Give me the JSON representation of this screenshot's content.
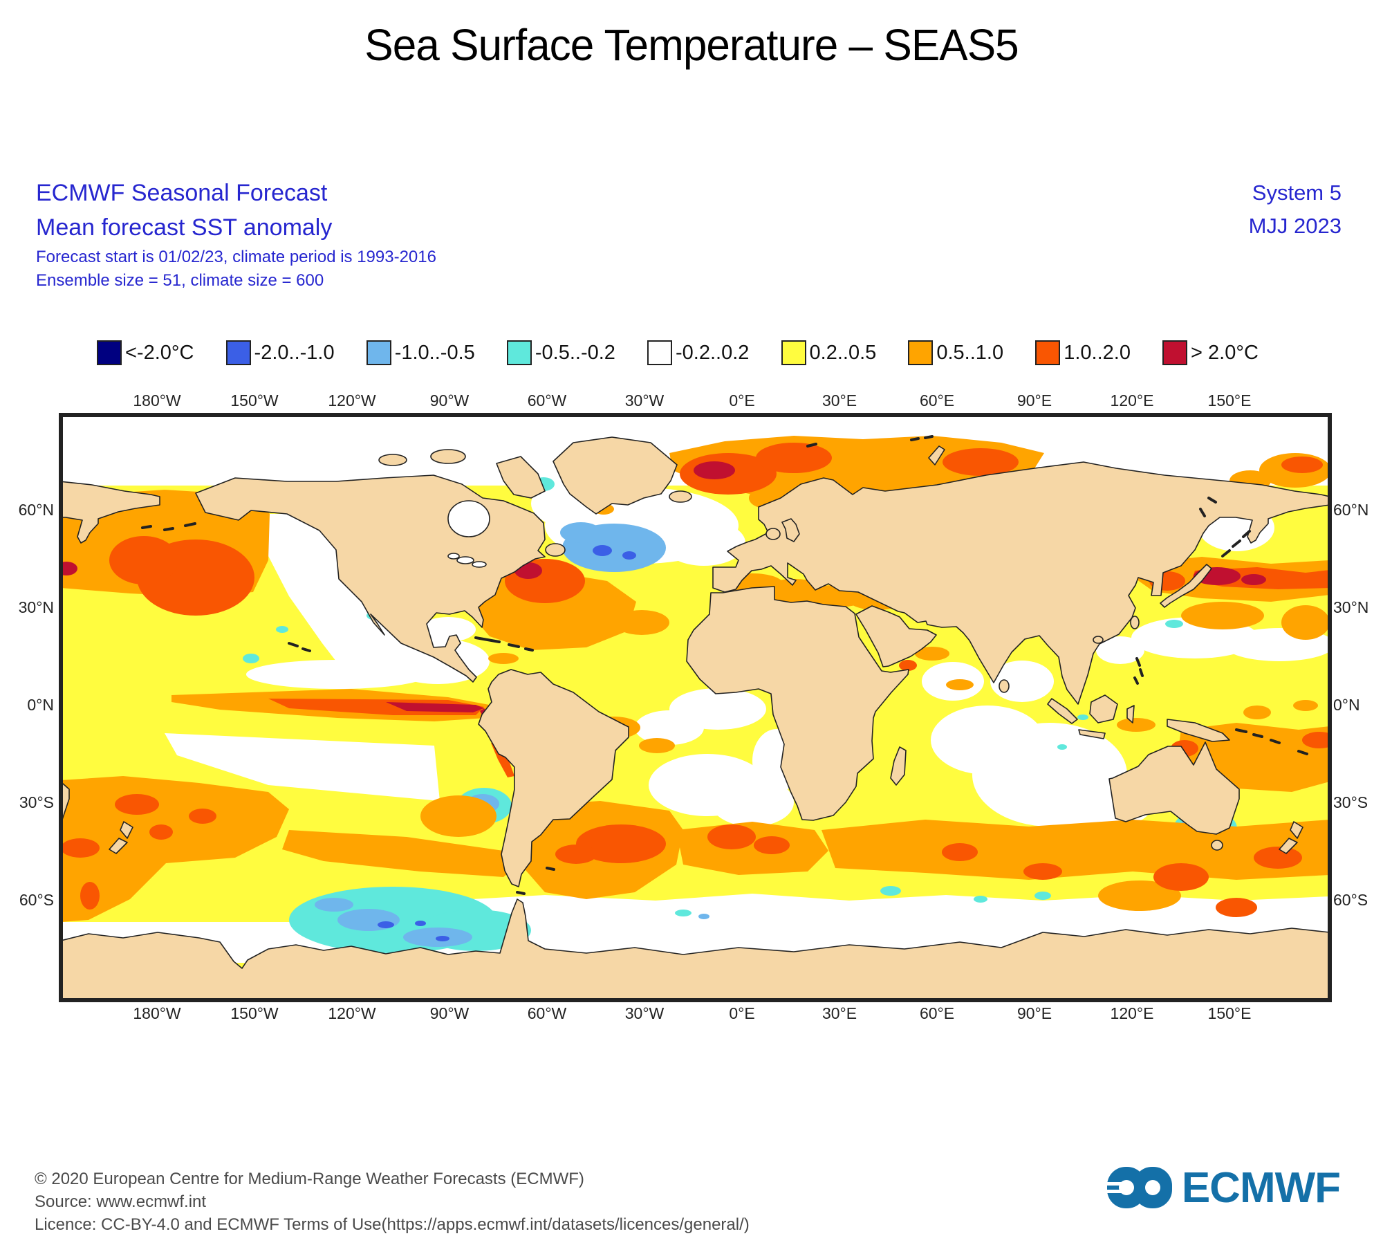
{
  "title": "Sea Surface Temperature – SEAS5",
  "header": {
    "product": "ECMWF Seasonal Forecast",
    "subtitle": "Mean forecast SST anomaly",
    "detail1": "Forecast start is 01/02/23, climate period is 1993-2016",
    "detail2": "Ensemble size = 51, climate size = 600",
    "system": "System 5",
    "period": "MJJ 2023"
  },
  "legend": {
    "items": [
      {
        "color": "#000080",
        "label": "<-2.0°C"
      },
      {
        "color": "#3B5FE6",
        "label": "-2.0..-1.0"
      },
      {
        "color": "#6FB6EC",
        "label": "-1.0..-0.5"
      },
      {
        "color": "#5FE8DC",
        "label": "-0.5..-0.2"
      },
      {
        "color": "#FFFFFF",
        "label": "-0.2..0.2"
      },
      {
        "color": "#FFFC3F",
        "label": "0.2..0.5"
      },
      {
        "color": "#FFA400",
        "label": "0.5..1.0"
      },
      {
        "color": "#F95602",
        "label": "1.0..2.0"
      },
      {
        "color": "#C01030",
        "label": "> 2.0°C"
      }
    ]
  },
  "map": {
    "lon_ticks": [
      "180°W",
      "150°W",
      "120°W",
      "90°W",
      "60°W",
      "30°W",
      "0°E",
      "30°E",
      "60°E",
      "90°E",
      "120°E",
      "150°E"
    ],
    "lat_ticks": [
      "60°N",
      "30°N",
      "0°N",
      "30°S",
      "60°S"
    ],
    "colors": {
      "land": "#F6D7A6",
      "ocean_base": "#FFFC3F"
    }
  },
  "footer": {
    "copyright": "© 2020 European Centre for Medium-Range Weather Forecasts (ECMWF)",
    "source": "Source: www.ecmwf.int",
    "licence": "Licence: CC-BY-4.0 and ECMWF Terms of Use(https://apps.ecmwf.int/datasets/licences/general/)"
  },
  "logo": {
    "text": "ECMWF"
  },
  "chart_data": {
    "type": "map",
    "projection": "equirectangular",
    "variable": "mean forecast SST anomaly (°C), SEAS5 System 5, MJJ 2023",
    "anomaly_bins_c": [
      "<-2.0",
      "-2.0..-1.0",
      "-1.0..-0.5",
      "-0.5..-0.2",
      "-0.2..0.2",
      "0.2..0.5",
      "0.5..1.0",
      "1.0..2.0",
      ">2.0"
    ],
    "lon_range": [
      "180°W",
      "150°E"
    ],
    "lat_labels": [
      "60°N",
      "30°N",
      "0°N",
      "30°S",
      "60°S"
    ],
    "notable_features": [
      ">2.0°C warm tongue along eastern equatorial Pacific reaching South American coast (El Niño pattern)",
      "1.0–2.0°C warm pool in central North Pacific and east of Japan (>2.0°C core)",
      "1.0–2.0°C anomalies off US east coast with >2.0°C core",
      "1.0–2.0°C anomalies in Norwegian/Barents Sea with >2.0°C core",
      "-1.0..-0.5°C cold patch south of Greenland with -2.0..-1.0 core",
      "-0.5..-0.2 and -1.0..-0.5°C cold region in Southeast Pacific Southern Ocean",
      "0.5–1.0°C warm band across South Atlantic and southern Indian Ocean mid-latitudes",
      "near-neutral (-0.2..0.2) bands in subtropical gyres and around Antarctica"
    ]
  }
}
